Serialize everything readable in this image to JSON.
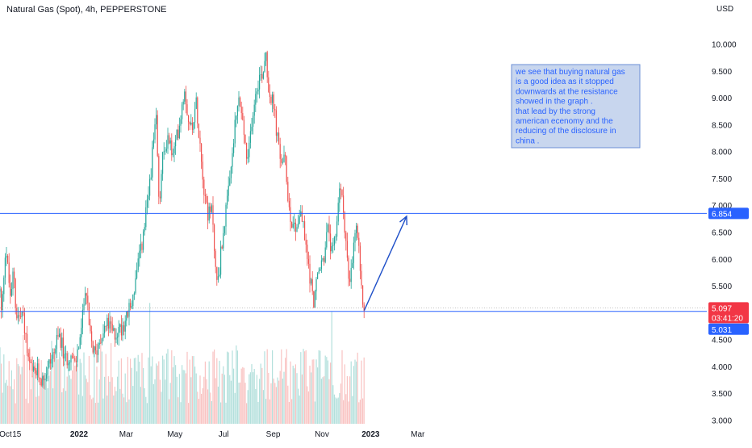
{
  "header": {
    "title": "Natural Gas (Spot), 4h, PEPPERSTONE",
    "currency": "USD"
  },
  "colors": {
    "up": "#26a69a",
    "down": "#ef5350",
    "hline": "#2962ff",
    "arrow": "#1e4fc8",
    "price_tag_bg": "#f23645",
    "level_tag_bg": "#2962ff",
    "note_bg": "#c8d6ee",
    "note_border": "#6b8fd6",
    "note_text": "#2962ff"
  },
  "annotation": {
    "lines": [
      "we see that buying natural gas",
      "is a good idea as it stopped",
      "downwards at the resistance",
      "showed in the graph .",
      "that lead by the strong",
      "american ecenomy and the",
      "reducing of the disclosure in",
      "china ."
    ]
  },
  "price_tags": {
    "current_price": "5.097",
    "countdown": "03:41:20",
    "resistance_level": "6.854",
    "support_level": "5.031"
  },
  "chart_data": {
    "type": "candlestick",
    "title": "Natural Gas (Spot), 4h, PEPPERSTONE",
    "ylabel": "USD",
    "ylim": [
      3.0,
      10.25
    ],
    "grid": false,
    "y_ticks": [
      "3.000",
      "3.500",
      "4.000",
      "4.500",
      "5.000",
      "5.500",
      "6.000",
      "6.500",
      "7.000",
      "7.500",
      "8.000",
      "8.500",
      "9.000",
      "9.500",
      "10.000"
    ],
    "x_ticks": [
      "Oct",
      "15",
      "2022",
      "Mar",
      "May",
      "Jul",
      "Sep",
      "Nov",
      "2023",
      "Mar"
    ],
    "x_tick_dates": [
      "2021-10-01",
      "2021-10-15",
      "2022-01-01",
      "2022-03-01",
      "2022-05-01",
      "2022-07-01",
      "2022-09-01",
      "2022-11-01",
      "2023-01-01",
      "2023-03-01"
    ],
    "horizontal_lines": [
      {
        "value": 6.854
      },
      {
        "value": 5.031
      }
    ],
    "projection_arrow": {
      "from": {
        "date": "2022-12-24",
        "value": 5.05
      },
      "to": {
        "date": "2023-02-15",
        "value": 6.8
      }
    },
    "series_start_date": "2021-09-24",
    "series_end_date": "2022-12-24",
    "close_path": [
      [
        "2021-09-24",
        5.4
      ],
      [
        "2021-09-26",
        4.9
      ],
      [
        "2021-09-29",
        5.8
      ],
      [
        "2021-10-01",
        6.3
      ],
      [
        "2021-10-05",
        5.6
      ],
      [
        "2021-10-08",
        5.2
      ],
      [
        "2021-10-11",
        5.9
      ],
      [
        "2021-10-14",
        5.0
      ],
      [
        "2021-10-19",
        4.9
      ],
      [
        "2021-10-22",
        5.0
      ],
      [
        "2021-10-26",
        4.6
      ],
      [
        "2021-10-29",
        4.1
      ],
      [
        "2021-11-04",
        3.85
      ],
      [
        "2021-11-10",
        3.9
      ],
      [
        "2021-11-16",
        3.75
      ],
      [
        "2021-11-22",
        3.95
      ],
      [
        "2021-12-01",
        4.3
      ],
      [
        "2021-12-08",
        4.6
      ],
      [
        "2021-12-14",
        4.1
      ],
      [
        "2021-12-20",
        4.25
      ],
      [
        "2021-12-27",
        4.0
      ],
      [
        "2022-01-05",
        4.8
      ],
      [
        "2022-01-09",
        5.6
      ],
      [
        "2022-01-14",
        4.6
      ],
      [
        "2022-01-21",
        4.2
      ],
      [
        "2022-01-28",
        4.6
      ],
      [
        "2022-02-06",
        4.8
      ],
      [
        "2022-02-13",
        4.6
      ],
      [
        "2022-02-21",
        4.7
      ],
      [
        "2022-03-01",
        4.9
      ],
      [
        "2022-03-08",
        5.2
      ],
      [
        "2022-03-15",
        5.8
      ],
      [
        "2022-03-22",
        6.4
      ],
      [
        "2022-03-29",
        7.2
      ],
      [
        "2022-04-03",
        8.0
      ],
      [
        "2022-04-08",
        8.6
      ],
      [
        "2022-04-11",
        6.9
      ],
      [
        "2022-04-15",
        7.8
      ],
      [
        "2022-04-22",
        8.3
      ],
      [
        "2022-04-29",
        7.9
      ],
      [
        "2022-05-06",
        8.5
      ],
      [
        "2022-05-13",
        9.2
      ],
      [
        "2022-05-20",
        8.4
      ],
      [
        "2022-05-28",
        8.9
      ],
      [
        "2022-06-02",
        8.1
      ],
      [
        "2022-06-06",
        7.4
      ],
      [
        "2022-06-12",
        6.8
      ],
      [
        "2022-06-17",
        6.9
      ],
      [
        "2022-06-22",
        5.5
      ],
      [
        "2022-06-26",
        5.9
      ],
      [
        "2022-07-01",
        6.6
      ],
      [
        "2022-07-08",
        7.3
      ],
      [
        "2022-07-14",
        8.3
      ],
      [
        "2022-07-20",
        9.0
      ],
      [
        "2022-07-26",
        8.4
      ],
      [
        "2022-07-31",
        7.7
      ],
      [
        "2022-08-05",
        8.6
      ],
      [
        "2022-08-12",
        9.3
      ],
      [
        "2022-08-19",
        9.5
      ],
      [
        "2022-08-23",
        9.9
      ],
      [
        "2022-08-26",
        9.2
      ],
      [
        "2022-09-02",
        8.8
      ],
      [
        "2022-09-09",
        7.9
      ],
      [
        "2022-09-16",
        7.8
      ],
      [
        "2022-09-22",
        6.8
      ],
      [
        "2022-09-29",
        6.6
      ],
      [
        "2022-10-06",
        6.9
      ],
      [
        "2022-10-12",
        6.2
      ],
      [
        "2022-10-17",
        5.7
      ],
      [
        "2022-10-21",
        5.2
      ],
      [
        "2022-10-26",
        5.6
      ],
      [
        "2022-10-31",
        5.9
      ],
      [
        "2022-11-04",
        6.1
      ],
      [
        "2022-11-09",
        6.6
      ],
      [
        "2022-11-14",
        6.0
      ],
      [
        "2022-11-18",
        6.4
      ],
      [
        "2022-11-23",
        7.4
      ],
      [
        "2022-11-28",
        6.9
      ],
      [
        "2022-12-01",
        6.4
      ],
      [
        "2022-12-05",
        5.4
      ],
      [
        "2022-12-09",
        5.9
      ],
      [
        "2022-12-13",
        6.6
      ],
      [
        "2022-12-16",
        6.4
      ],
      [
        "2022-12-20",
        5.4
      ],
      [
        "2022-12-24",
        5.1
      ]
    ],
    "volume_note": "volume histogram along the bottom of the chart, colored by candle direction"
  }
}
